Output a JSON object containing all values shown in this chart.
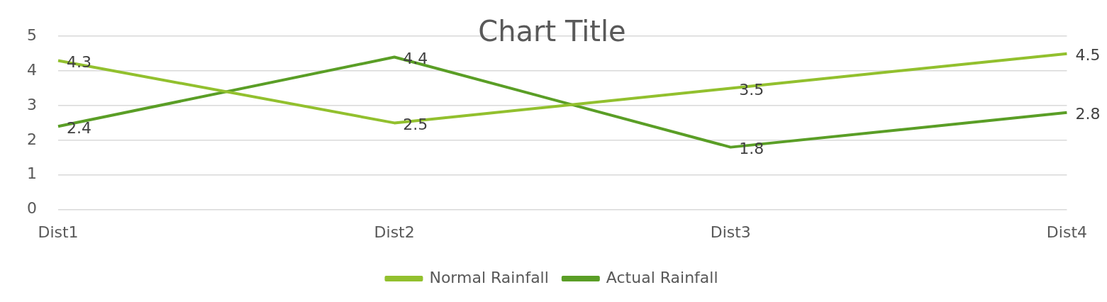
{
  "chart_data": {
    "type": "line",
    "title": "Chart Title",
    "categories": [
      "Dist1",
      "Dist2",
      "Dist3",
      "Dist4"
    ],
    "series": [
      {
        "name": "Normal Rainfall",
        "color": "#92c02e",
        "values": [
          4.3,
          2.5,
          3.5,
          4.5
        ]
      },
      {
        "name": "Actual Rainfall",
        "color": "#5a9e26",
        "values": [
          2.4,
          4.4,
          1.8,
          2.8
        ]
      }
    ],
    "ylim": [
      0,
      5
    ],
    "yticks": [
      0,
      1,
      2,
      3,
      4,
      5
    ],
    "grid": "y",
    "legend": "bottom",
    "data_labels": true,
    "marker": "none",
    "line_style": "solid"
  }
}
